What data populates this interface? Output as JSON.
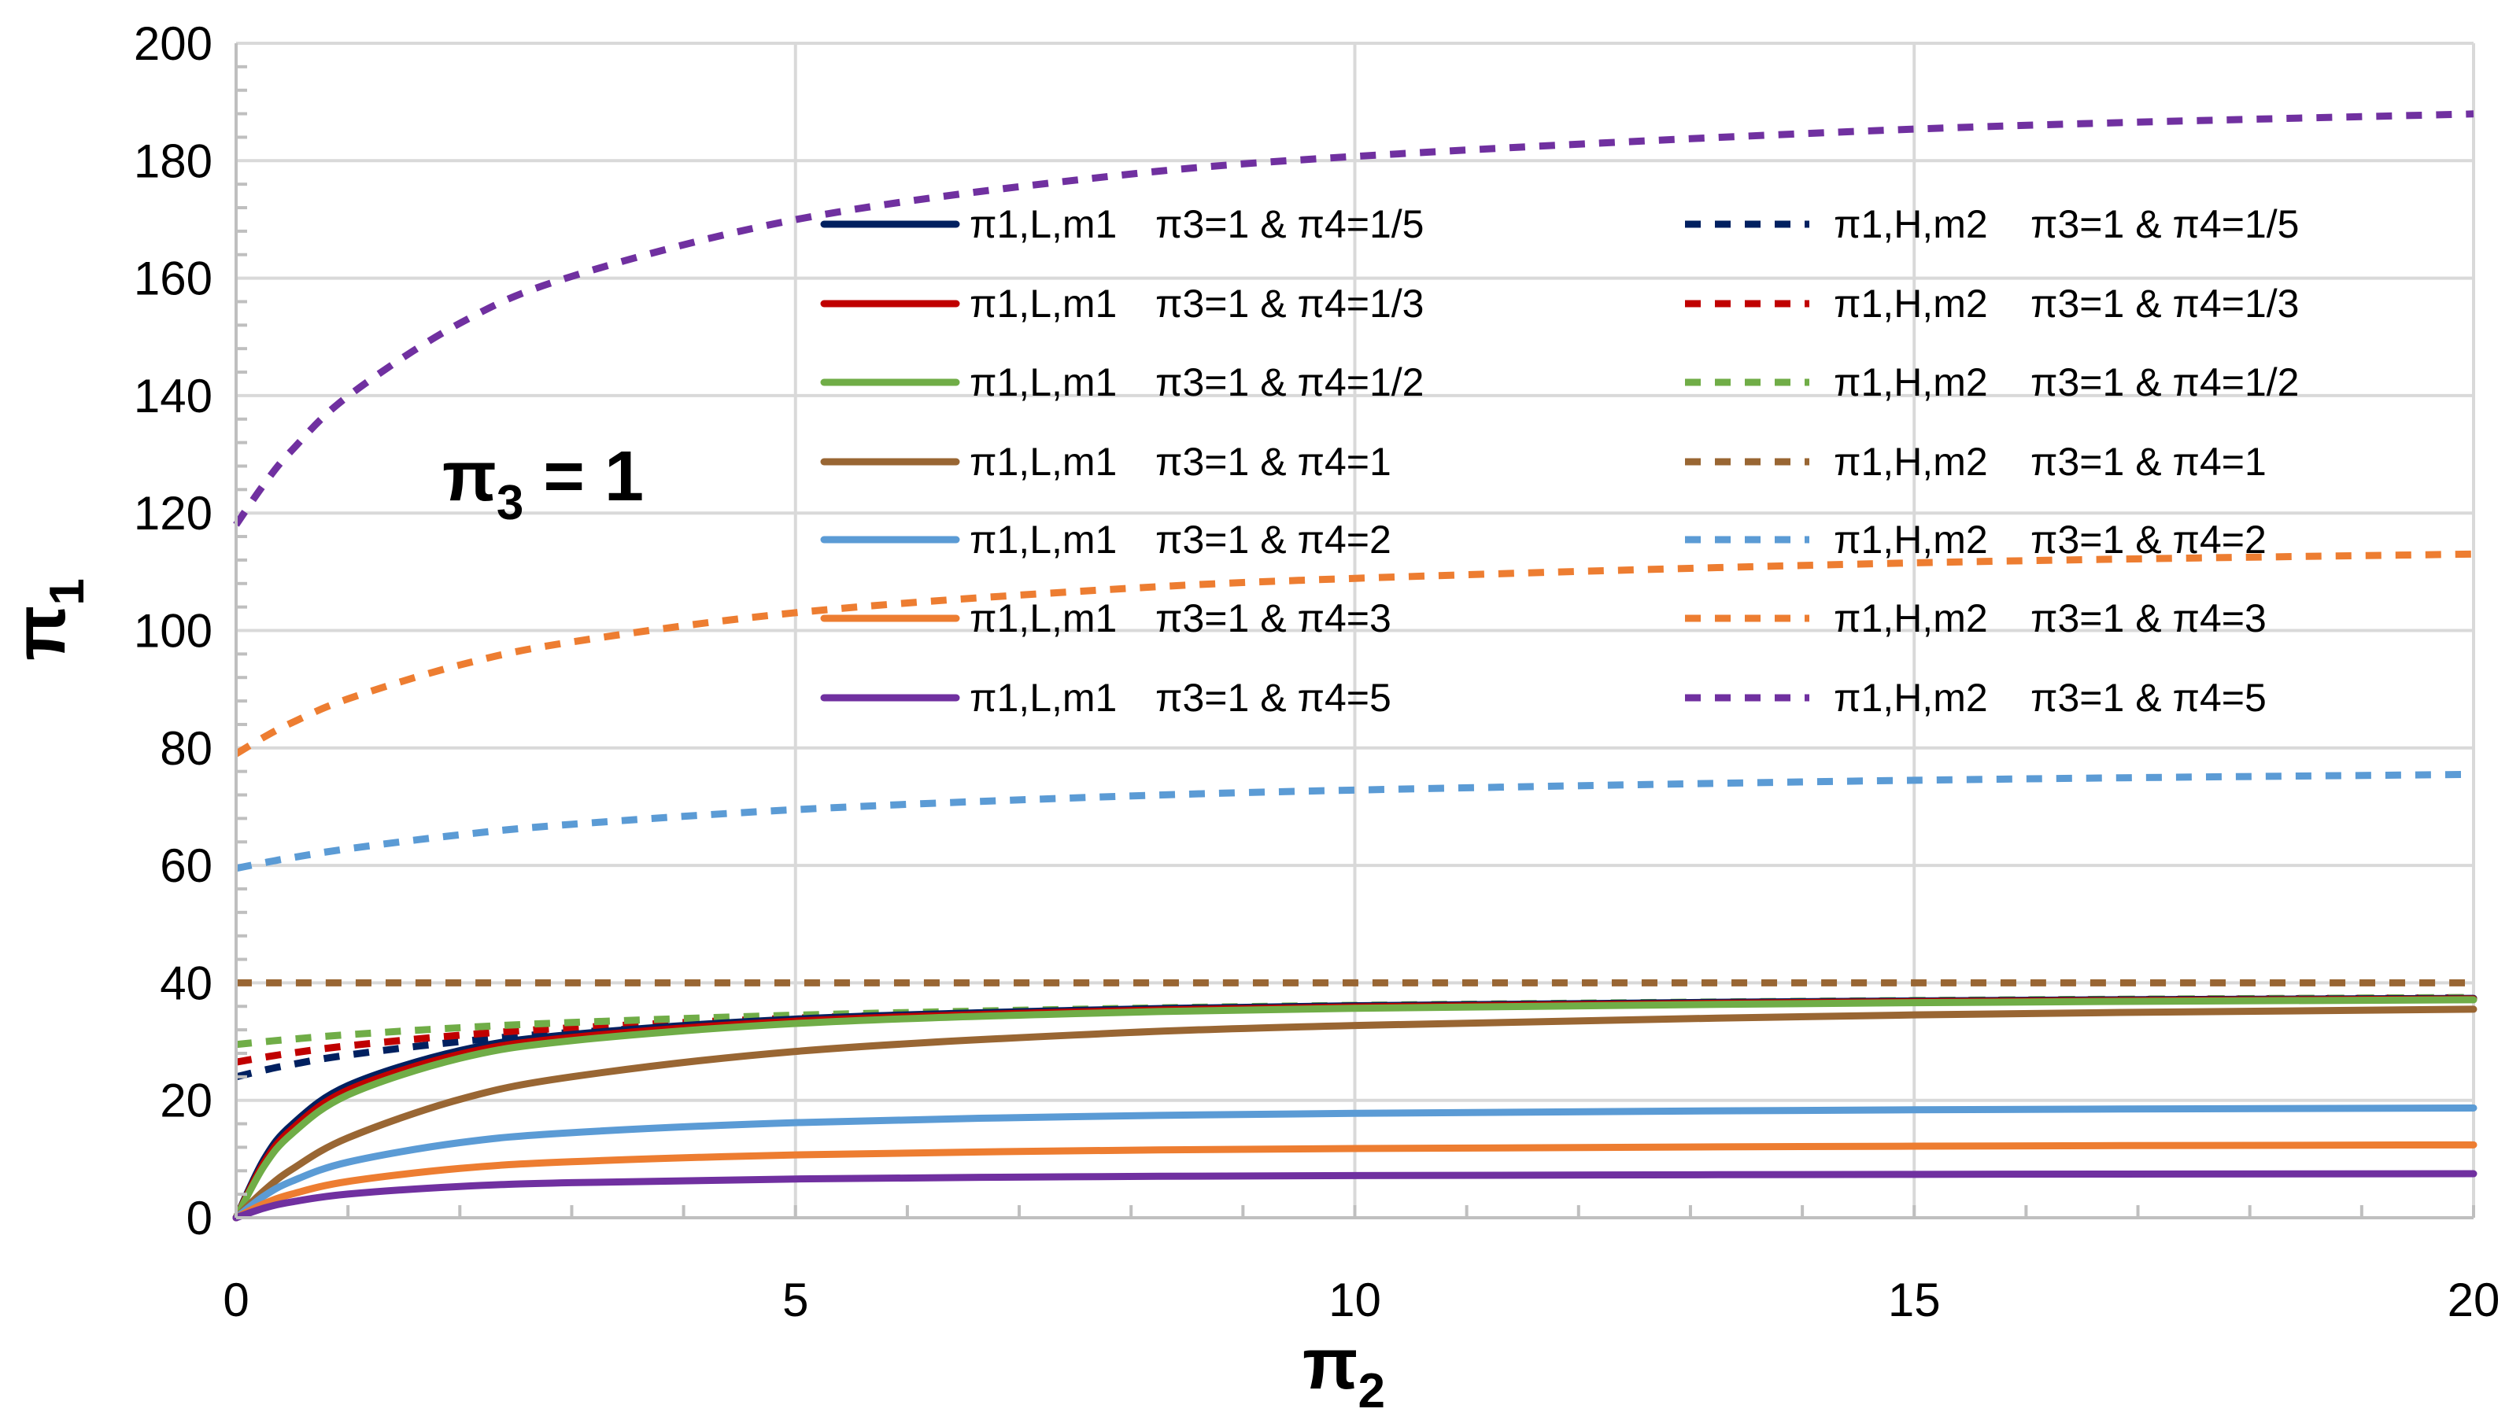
{
  "chart_data": {
    "type": "line",
    "title": "",
    "xlabel": "π2",
    "ylabel": "π1",
    "xlim": [
      0,
      20
    ],
    "ylim": [
      0,
      200
    ],
    "xticks": [
      "0",
      "5",
      "10",
      "15",
      "20"
    ],
    "yticks": [
      "0",
      "20",
      "40",
      "60",
      "80",
      "100",
      "120",
      "140",
      "160",
      "180",
      "200"
    ],
    "grid": true,
    "legend_placement": "upper-center, two columns",
    "annotation": {
      "main": "π",
      "sub": "3",
      "rest": " = 1"
    },
    "x": [
      0,
      0.25,
      0.5,
      1,
      2,
      3,
      5,
      7.5,
      10,
      15,
      20
    ],
    "series": [
      {
        "name": "π1,L,m1",
        "condition": "π3=1 & π4=1/5",
        "color": "#002060",
        "dash": false,
        "values": [
          0,
          9.97,
          15.86,
          22.5,
          28.46,
          31.21,
          33.83,
          35.31,
          36.1,
          36.93,
          37.36
        ]
      },
      {
        "name": "π1,L,m1",
        "condition": "π3=1 & π4=1/3",
        "color": "#C00000",
        "dash": false,
        "values": [
          0,
          9.39,
          15.12,
          21.74,
          27.84,
          30.71,
          33.48,
          35.05,
          35.9,
          36.79,
          37.25
        ]
      },
      {
        "name": "π1,L,m1",
        "condition": "π3=1 & π4=1/2",
        "color": "#70AD47",
        "dash": false,
        "values": [
          0,
          8.8,
          14.33,
          20.92,
          27.16,
          30.16,
          33.08,
          34.76,
          35.67,
          36.62,
          37.12
        ]
      },
      {
        "name": "π1,L,m1",
        "condition": "π3=1 & π4=1",
        "color": "#996633",
        "dash": false,
        "values": [
          0,
          4.62,
          8.26,
          13.61,
          20.16,
          24.0,
          28.32,
          31.12,
          32.74,
          34.54,
          35.51
        ]
      },
      {
        "name": "π1,L,m1",
        "condition": "π3=1 & π4=2",
        "color": "#5B9BD5",
        "dash": false,
        "values": [
          0,
          3.7,
          6.23,
          9.47,
          12.79,
          14.49,
          16.2,
          17.22,
          17.78,
          18.38,
          18.69
        ]
      },
      {
        "name": "π1,L,m1",
        "condition": "π3=1 & π4=3",
        "color": "#ED7D31",
        "dash": false,
        "values": [
          0,
          2.39,
          4.04,
          6.18,
          8.4,
          9.54,
          10.7,
          11.4,
          11.78,
          12.19,
          12.41
        ]
      },
      {
        "name": "π1,L,m1",
        "condition": "π3=1 & π4=5",
        "color": "#7030A0",
        "dash": false,
        "values": [
          0,
          1.64,
          2.71,
          4.03,
          5.33,
          5.97,
          6.6,
          6.98,
          7.18,
          7.39,
          7.5
        ]
      },
      {
        "name": "π1,H,m2",
        "condition": "π3=1 & π4=1/5",
        "color": "#002060",
        "dash": true,
        "values": [
          24,
          25.13,
          26.11,
          27.71,
          30.0,
          31.55,
          33.51,
          34.93,
          35.82,
          36.86,
          37.45
        ]
      },
      {
        "name": "π1,H,m2",
        "condition": "π3=1 & π4=1/3",
        "color": "#C00000",
        "dash": true,
        "values": [
          26.5,
          27.33,
          28.05,
          29.28,
          31.08,
          32.34,
          33.99,
          35.22,
          36.0,
          36.94,
          37.48
        ]
      },
      {
        "name": "π1,H,m2",
        "condition": "π3=1 & π4=1/2",
        "color": "#70AD47",
        "dash": true,
        "values": [
          29.5,
          29.98,
          30.41,
          31.17,
          32.36,
          33.25,
          34.5,
          35.5,
          36.17,
          37.0,
          37.5
        ]
      },
      {
        "name": "π1,H,m2",
        "condition": "π3=1 & π4=1",
        "color": "#996633",
        "dash": true,
        "values": [
          40,
          40,
          40,
          40,
          40,
          40,
          40,
          40,
          40,
          40,
          40
        ]
      },
      {
        "name": "π1,H,m2",
        "condition": "π3=1 & π4=2",
        "color": "#5B9BD5",
        "dash": true,
        "values": [
          59.5,
          60.45,
          61.32,
          62.83,
          65.21,
          67.0,
          69.5,
          71.5,
          72.83,
          74.5,
          75.5
        ]
      },
      {
        "name": "π1,H,m2",
        "condition": "π3=1 & π4=3",
        "color": "#ED7D31",
        "dash": true,
        "values": [
          79,
          81.85,
          84.31,
          88.36,
          94.13,
          98.05,
          103.03,
          106.63,
          108.88,
          111.52,
          113.02
        ]
      },
      {
        "name": "π1,H,m2",
        "condition": "π3=1 & π4=5",
        "color": "#7030A0",
        "dash": true,
        "values": [
          118,
          124.91,
          130.72,
          139.91,
          152.32,
          160.3,
          169.97,
          176.68,
          180.73,
          185.38,
          187.97
        ]
      }
    ]
  }
}
